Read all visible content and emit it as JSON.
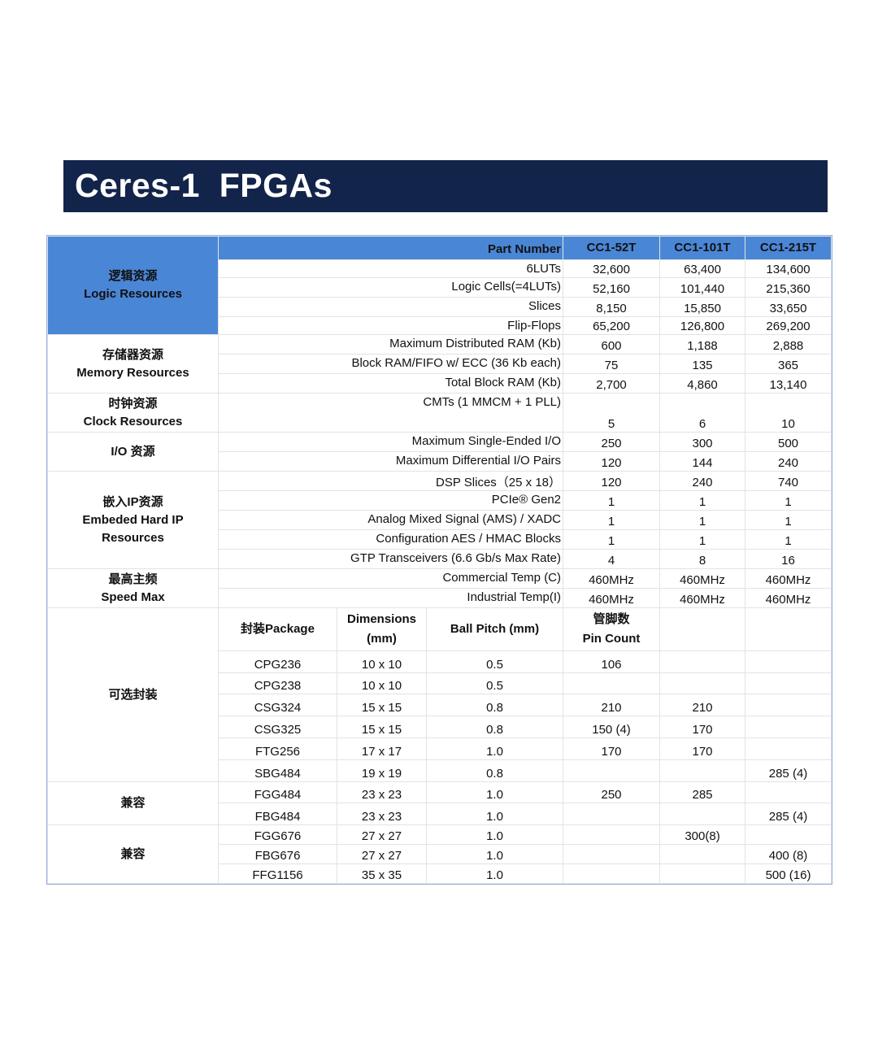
{
  "title": "Ceres-1  FPGAs",
  "colors": {
    "title_bg": "#13244b",
    "header_blue": "#4a86d6"
  },
  "header": {
    "label": "Part Number",
    "parts": [
      "CC1-52T",
      "CC1-101T",
      "CC1-215T"
    ]
  },
  "spec_groups": [
    {
      "name": [
        "逻辑资源",
        "Logic Resources"
      ],
      "rows": [
        {
          "label": "6LUTs",
          "values": [
            "32,600",
            "63,400",
            "134,600"
          ]
        },
        {
          "label": "Logic Cells(=4LUTs)",
          "values": [
            "52,160",
            "101,440",
            "215,360"
          ]
        },
        {
          "label": "Slices",
          "values": [
            "8,150",
            "15,850",
            "33,650"
          ]
        },
        {
          "label": "Flip-Flops",
          "values": [
            "65,200",
            "126,800",
            "269,200"
          ]
        }
      ]
    },
    {
      "name": [
        "存储器资源",
        "Memory Resources"
      ],
      "rows": [
        {
          "label": "Maximum Distributed RAM (Kb)",
          "values": [
            "600",
            "1,188",
            "2,888"
          ]
        },
        {
          "label": "Block RAM/FIFO w/ ECC (36 Kb each)",
          "values": [
            "75",
            "135",
            "365"
          ]
        },
        {
          "label": "Total Block RAM (Kb)",
          "values": [
            "2,700",
            "4,860",
            "13,140"
          ]
        }
      ]
    },
    {
      "name": [
        "时钟资源",
        "Clock Resources"
      ],
      "rows": [
        {
          "label": "CMTs (1 MMCM + 1 PLL)",
          "values": [
            "5",
            "6",
            "10"
          ]
        }
      ]
    },
    {
      "name": [
        "I/O 资源"
      ],
      "rows": [
        {
          "label": "Maximum Single-Ended I/O",
          "values": [
            "250",
            "300",
            "500"
          ]
        },
        {
          "label": "Maximum  Differential I/O Pairs",
          "values": [
            "120",
            "144",
            "240"
          ]
        }
      ]
    },
    {
      "name": [
        "嵌入IP资源",
        "Embeded Hard IP",
        "Resources"
      ],
      "rows": [
        {
          "label": "DSP Slices（25 x 18）",
          "values": [
            "120",
            "240",
            "740"
          ]
        },
        {
          "label": "PCIe® Gen2",
          "values": [
            "1",
            "1",
            "1"
          ]
        },
        {
          "label": "Analog Mixed Signal (AMS) / XADC",
          "values": [
            "1",
            "1",
            "1"
          ]
        },
        {
          "label": "Configuration AES / HMAC  Blocks",
          "values": [
            "1",
            "1",
            "1"
          ]
        },
        {
          "label": "GTP Transceivers (6.6 Gb/s Max Rate)",
          "values": [
            "4",
            "8",
            "16"
          ]
        }
      ]
    },
    {
      "name": [
        "最高主频",
        "Speed Max"
      ],
      "rows": [
        {
          "label": "Commercial Temp  (C)",
          "values": [
            "460MHz",
            "460MHz",
            "460MHz"
          ]
        },
        {
          "label": "Industrial Temp(I)",
          "values": [
            "460MHz",
            "460MHz",
            "460MHz"
          ]
        }
      ]
    }
  ],
  "package_header": {
    "package": "封装Package",
    "dimensions": [
      "Dimensions",
      "(mm)"
    ],
    "pitch": "Ball Pitch (mm)",
    "pins": [
      "管脚数",
      "Pin Count"
    ]
  },
  "package_groups": [
    {
      "name": "可选封装",
      "rows": [
        {
          "package": "CPG236",
          "dimensions": "10 x 10",
          "pitch": "0.5",
          "pins": [
            "106",
            "",
            ""
          ]
        },
        {
          "package": "CPG238",
          "dimensions": "10 x 10",
          "pitch": "0.5",
          "pins": [
            "",
            "",
            ""
          ]
        },
        {
          "package": "CSG324",
          "dimensions": "15 x 15",
          "pitch": "0.8",
          "pins": [
            "210",
            "210",
            ""
          ]
        },
        {
          "package": "CSG325",
          "dimensions": "15 x 15",
          "pitch": "0.8",
          "pins": [
            "150 (4)",
            "170",
            ""
          ]
        },
        {
          "package": "FTG256",
          "dimensions": "17 x 17",
          "pitch": "1.0",
          "pins": [
            "170",
            "170",
            ""
          ]
        },
        {
          "package": "SBG484",
          "dimensions": "19 x 19",
          "pitch": "0.8",
          "pins": [
            "",
            "",
            "285 (4)"
          ]
        }
      ]
    },
    {
      "name": "兼容",
      "rows": [
        {
          "package": "FGG484",
          "dimensions": "23 x 23",
          "pitch": "1.0",
          "pins": [
            "250",
            "285",
            ""
          ]
        },
        {
          "package": "FBG484",
          "dimensions": "23 x 23",
          "pitch": "1.0",
          "pins": [
            "",
            "",
            "285 (4)"
          ]
        }
      ]
    },
    {
      "name": "兼容",
      "rows": [
        {
          "package": "FGG676",
          "dimensions": "27 x 27",
          "pitch": "1.0",
          "pins": [
            "",
            "300(8)",
            ""
          ]
        },
        {
          "package": "FBG676",
          "dimensions": "27 x 27",
          "pitch": "1.0",
          "pins": [
            "",
            "",
            "400 (8)"
          ]
        },
        {
          "package": "FFG1156",
          "dimensions": "35 x 35",
          "pitch": "1.0",
          "pins": [
            "",
            "",
            "500 (16)"
          ]
        }
      ]
    }
  ]
}
